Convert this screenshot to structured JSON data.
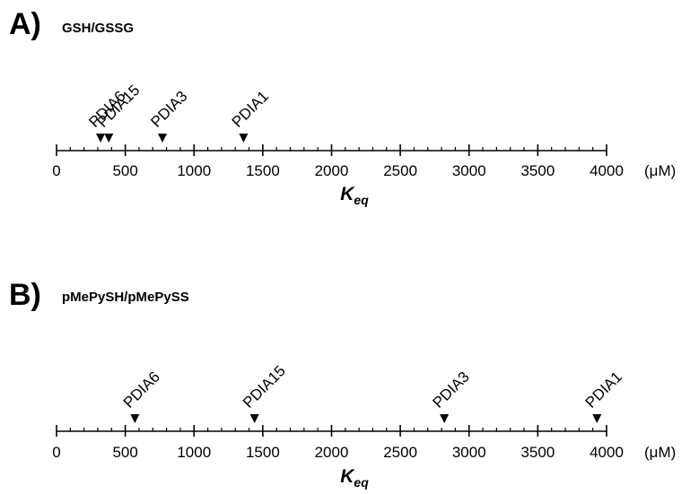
{
  "chart_data": [
    {
      "type": "scatter",
      "panel_letter": "A)",
      "title": "GSH/GSSG",
      "xlabel_main": "K",
      "xlabel_sub": "eq",
      "unit": "(μM)",
      "xlim": [
        0,
        4000
      ],
      "major_ticks": [
        0,
        500,
        1000,
        1500,
        2000,
        2500,
        3000,
        3500,
        4000
      ],
      "minor_step": 100,
      "grid": false,
      "points": [
        {
          "label": "PDIA6",
          "x": 320
        },
        {
          "label": "PDIA15",
          "x": 380
        },
        {
          "label": "PDIA3",
          "x": 770
        },
        {
          "label": "PDIA1",
          "x": 1360
        }
      ]
    },
    {
      "type": "scatter",
      "panel_letter": "B)",
      "title": "pMePySH/pMePySS",
      "xlabel_main": "K",
      "xlabel_sub": "eq",
      "unit": "(μM)",
      "xlim": [
        0,
        4000
      ],
      "major_ticks": [
        0,
        500,
        1000,
        1500,
        2000,
        2500,
        3000,
        3500,
        4000
      ],
      "minor_step": 100,
      "grid": false,
      "points": [
        {
          "label": "PDIA6",
          "x": 570
        },
        {
          "label": "PDIA15",
          "x": 1440
        },
        {
          "label": "PDIA3",
          "x": 2820
        },
        {
          "label": "PDIA1",
          "x": 3930
        }
      ]
    }
  ]
}
